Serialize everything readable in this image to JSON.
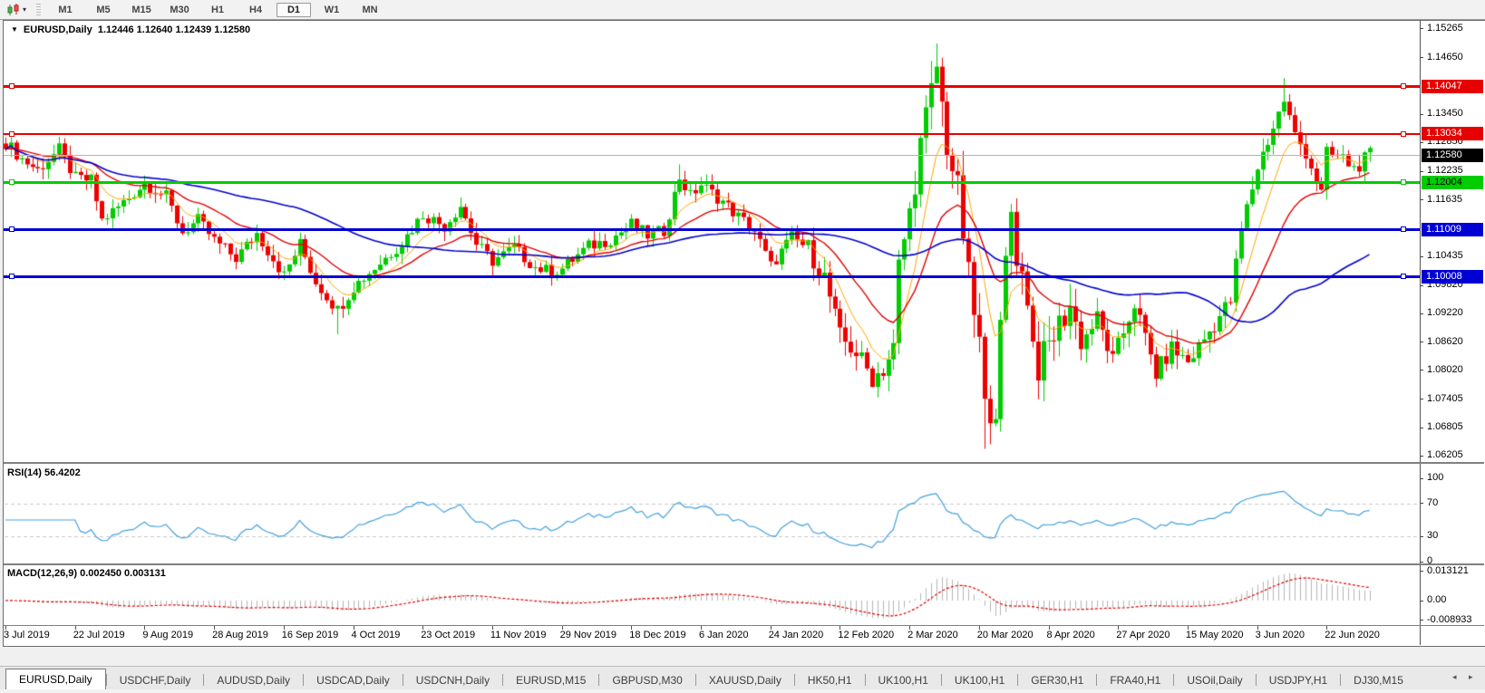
{
  "toolbar": {
    "chart_type_icon": "candlestick-chart-icon",
    "timeframes": [
      "M1",
      "M5",
      "M15",
      "M30",
      "H1",
      "H4",
      "D1",
      "W1",
      "MN"
    ],
    "active_timeframe": "D1"
  },
  "chart": {
    "title": {
      "symbol_label": "EURUSD,Daily",
      "ohlc": "1.12446 1.12640 1.12439 1.12580"
    },
    "price_axis": {
      "ticks": [
        "1.15265",
        "1.14650",
        "1.13450",
        "1.12850",
        "1.12235",
        "1.11635",
        "1.10435",
        "1.09820",
        "1.09220",
        "1.08620",
        "1.08020",
        "1.07405",
        "1.06805",
        "1.06205"
      ],
      "min": 1.0608,
      "max": 1.1543
    },
    "current_price": {
      "label": "1.12580",
      "price": 1.1258,
      "badge_color": "#000000",
      "line_color": "#b4b4b4"
    },
    "hlines": [
      {
        "label": "1.14047",
        "price": 1.14047,
        "color": "#e60000",
        "thickness": 3,
        "text_color": "#ffffff"
      },
      {
        "label": "1.13034",
        "price": 1.13034,
        "color": "#e60000",
        "thickness": 2,
        "text_color": "#ffffff"
      },
      {
        "label": "1.12004",
        "price": 1.12004,
        "color": "#00cc00",
        "thickness": 3,
        "text_color": "#000000"
      },
      {
        "label": "1.11009",
        "price": 1.11009,
        "color": "#0000d4",
        "thickness": 3,
        "text_color": "#ffffff"
      },
      {
        "label": "1.10008",
        "price": 1.10008,
        "color": "#0000d4",
        "thickness": 3,
        "text_color": "#ffffff"
      }
    ],
    "date_axis": {
      "labels": [
        "3 Jul 2019",
        "22 Jul 2019",
        "9 Aug 2019",
        "28 Aug 2019",
        "16 Sep 2019",
        "4 Oct 2019",
        "23 Oct 2019",
        "11 Nov 2019",
        "29 Nov 2019",
        "18 Dec 2019",
        "6 Jan 2020",
        "24 Jan 2020",
        "12 Feb 2020",
        "2 Mar 2020",
        "20 Mar 2020",
        "8 Apr 2020",
        "27 Apr 2020",
        "15 May 2020",
        "3 Jun 2020",
        "22 Jun 2020"
      ],
      "bar_indices": [
        0,
        13,
        26,
        39,
        52,
        65,
        78,
        91,
        104,
        117,
        130,
        143,
        156,
        169,
        182,
        195,
        208,
        221,
        234,
        247
      ]
    }
  },
  "chart_data": {
    "type": "candlestick",
    "symbol": "EURUSD",
    "timeframe": "Daily",
    "bars": 256,
    "ylim": [
      1.0608,
      1.1543
    ],
    "up_color": "#00cc00",
    "down_color": "#ee0000",
    "close_anchors": [
      [
        0,
        1.1285
      ],
      [
        3,
        1.125
      ],
      [
        6,
        1.1227
      ],
      [
        10,
        1.127
      ],
      [
        13,
        1.1209
      ],
      [
        16,
        1.1205
      ],
      [
        18,
        1.112
      ],
      [
        21,
        1.1148
      ],
      [
        26,
        1.12
      ],
      [
        30,
        1.117
      ],
      [
        33,
        1.1095
      ],
      [
        36,
        1.112
      ],
      [
        39,
        1.1078
      ],
      [
        43,
        1.104
      ],
      [
        47,
        1.1093
      ],
      [
        52,
        1.1003
      ],
      [
        55,
        1.107
      ],
      [
        58,
        1.099
      ],
      [
        62,
        1.093
      ],
      [
        65,
        1.0979
      ],
      [
        70,
        1.103
      ],
      [
        74,
        1.1073
      ],
      [
        78,
        1.1133
      ],
      [
        82,
        1.1108
      ],
      [
        85,
        1.1152
      ],
      [
        88,
        1.107
      ],
      [
        91,
        1.1034
      ],
      [
        95,
        1.1062
      ],
      [
        99,
        1.1021
      ],
      [
        102,
        1.101
      ],
      [
        104,
        1.1018
      ],
      [
        109,
        1.1065
      ],
      [
        113,
        1.108
      ],
      [
        117,
        1.1112
      ],
      [
        120,
        1.1088
      ],
      [
        123,
        1.1098
      ],
      [
        126,
        1.1212
      ],
      [
        128,
        1.1172
      ],
      [
        130,
        1.1196
      ],
      [
        134,
        1.116
      ],
      [
        137,
        1.1128
      ],
      [
        140,
        1.1098
      ],
      [
        143,
        1.1023
      ],
      [
        147,
        1.1085
      ],
      [
        150,
        1.106
      ],
      [
        153,
        1.1
      ],
      [
        156,
        1.0873
      ],
      [
        159,
        1.084
      ],
      [
        162,
        1.0786
      ],
      [
        164,
        1.0805
      ],
      [
        166,
        1.085
      ],
      [
        167,
        1.1026
      ],
      [
        169,
        1.1134
      ],
      [
        171,
        1.128
      ],
      [
        174,
        1.1446
      ],
      [
        176,
        1.128
      ],
      [
        178,
        1.1184
      ],
      [
        180,
        1.1
      ],
      [
        181,
        1.0922
      ],
      [
        182,
        1.086
      ],
      [
        183,
        1.072
      ],
      [
        185,
        1.0727
      ],
      [
        186,
        1.0882
      ],
      [
        187,
        1.103
      ],
      [
        188,
        1.1141
      ],
      [
        189,
        1.1048
      ],
      [
        191,
        1.0961
      ],
      [
        192,
        1.0859
      ],
      [
        193,
        1.0808
      ],
      [
        195,
        1.0857
      ],
      [
        199,
        1.094
      ],
      [
        201,
        1.086
      ],
      [
        204,
        1.0913
      ],
      [
        207,
        1.0822
      ],
      [
        211,
        1.0945
      ],
      [
        215,
        1.0795
      ],
      [
        218,
        1.0849
      ],
      [
        221,
        1.082
      ],
      [
        226,
        1.0901
      ],
      [
        229,
        1.095
      ],
      [
        231,
        1.1101
      ],
      [
        234,
        1.1234
      ],
      [
        236,
        1.1289
      ],
      [
        239,
        1.1375
      ],
      [
        241,
        1.13
      ],
      [
        243,
        1.1264
      ],
      [
        246,
        1.1177
      ],
      [
        247,
        1.1261
      ],
      [
        250,
        1.1251
      ],
      [
        252,
        1.123
      ],
      [
        254,
        1.1248
      ],
      [
        255,
        1.1258
      ]
    ],
    "spikes": {
      "62": {
        "l": 1.0879
      },
      "126": {
        "h": 1.1239
      },
      "156": {
        "l": 1.0865
      },
      "174": {
        "h": 1.1495
      },
      "183": {
        "l": 1.0636
      },
      "239": {
        "h": 1.1422
      }
    },
    "vol_zones": [
      [
        150,
        168,
        1.6
      ],
      [
        169,
        200,
        2.4
      ],
      [
        201,
        235,
        1.4
      ],
      [
        236,
        255,
        1.2
      ]
    ],
    "overlays": [
      {
        "name": "ma-fast",
        "type": "ema",
        "period": 8,
        "color": "#ffa500",
        "width": 1
      },
      {
        "name": "ma-mid",
        "type": "ema",
        "period": 21,
        "color": "#e00000",
        "width": 1.4
      },
      {
        "name": "ma-slow",
        "type": "sma",
        "period": 55,
        "color": "#0000cc",
        "width": 1.6
      }
    ]
  },
  "rsi": {
    "label": "RSI(14) 56.4202",
    "period": 14,
    "value": "56.4202",
    "ticks": [
      "100",
      "70",
      "30",
      "0"
    ],
    "tick_values": [
      100,
      70,
      30,
      0
    ],
    "levels": [
      70,
      30
    ],
    "line_color": "#42a0dd",
    "level_color": "#c8c8c8"
  },
  "macd": {
    "label": "MACD(12,26,9) 0.002450 0.003131",
    "fast": 12,
    "slow": 26,
    "signal": 9,
    "values": [
      "0.002450",
      "0.003131"
    ],
    "ticks": [
      "0.013121",
      "0.00",
      "-0.008933"
    ],
    "tick_values": [
      0.013121,
      0,
      -0.008933
    ],
    "hist_color": "#b4b4b4",
    "signal_color": "#e00000"
  },
  "tabs": {
    "items": [
      {
        "label": "EURUSD,Daily",
        "active": true
      },
      {
        "label": "USDCHF,Daily",
        "active": false
      },
      {
        "label": "AUDUSD,Daily",
        "active": false
      },
      {
        "label": "USDCAD,Daily",
        "active": false
      },
      {
        "label": "USDCNH,Daily",
        "active": false
      },
      {
        "label": "EURUSD,M15",
        "active": false
      },
      {
        "label": "GBPUSD,M30",
        "active": false
      },
      {
        "label": "XAUUSD,Daily",
        "active": false
      },
      {
        "label": "HK50,H1",
        "active": false
      },
      {
        "label": "UK100,H1",
        "active": false
      },
      {
        "label": "UK100,H1",
        "active": false
      },
      {
        "label": "GER30,H1",
        "active": false
      },
      {
        "label": "FRA40,H1",
        "active": false
      },
      {
        "label": "USOil,Daily",
        "active": false
      },
      {
        "label": "USDJPY,H1",
        "active": false
      },
      {
        "label": "DJ30,M15",
        "active": false
      }
    ],
    "scroll_left_icon": "◂",
    "scroll_right_icon": "▸"
  }
}
